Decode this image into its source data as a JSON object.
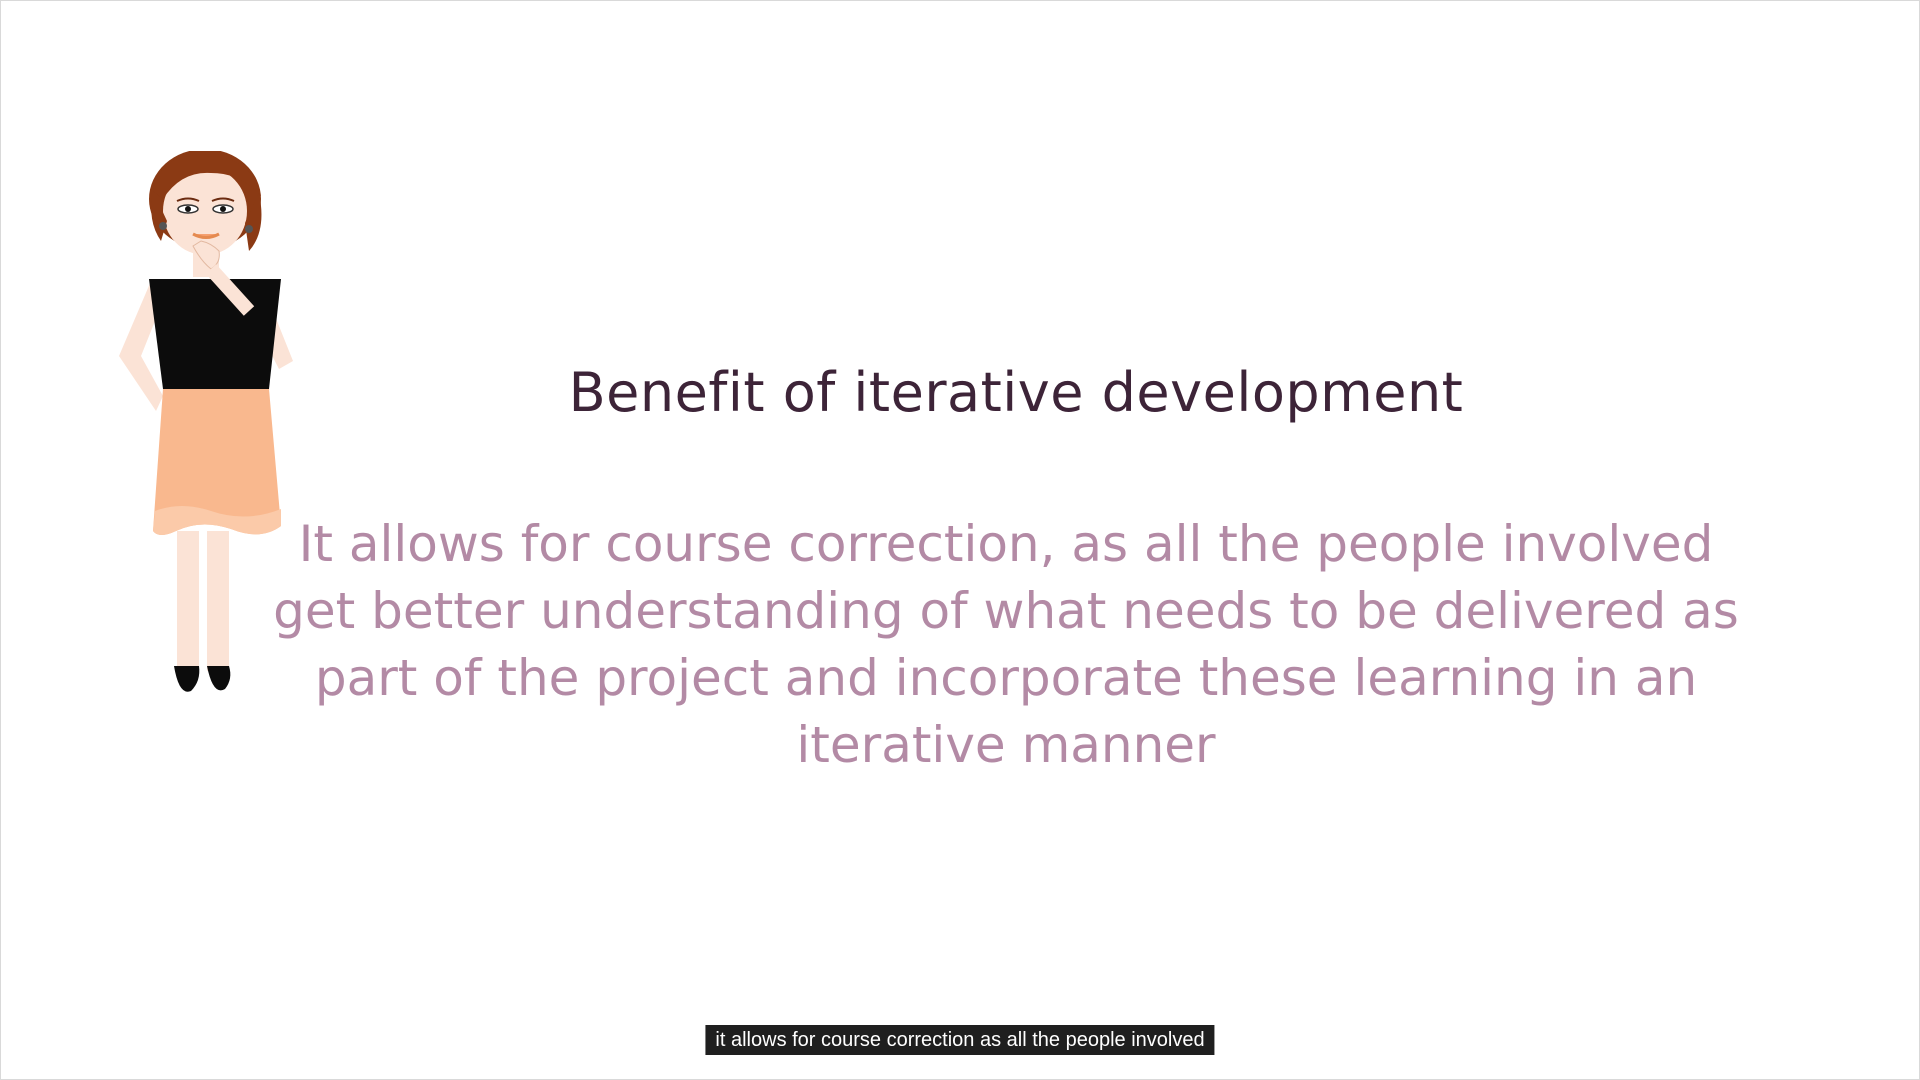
{
  "slide": {
    "title": "Benefit of iterative development",
    "body": "It allows for course correction, as all the people involved get better understanding of what needs to be delivered as part of the project and incorporate these learning in an iterative manner"
  },
  "caption": {
    "text": "it allows for course correction as all the people involved"
  },
  "colors": {
    "title": "#3d2438",
    "body": "#b38aa5",
    "caption_bg": "#1f1f1f"
  }
}
